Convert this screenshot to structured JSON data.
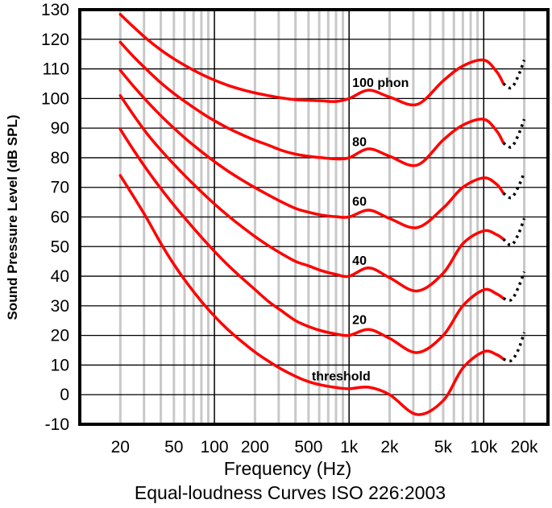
{
  "chart_data": {
    "type": "line",
    "title": "Equal-loudness Curves ISO 226:2003",
    "xlabel": "Frequency (Hz)",
    "ylabel": "Sound Pressure Level (dB SPL)",
    "x_scale": "log",
    "xlim": [
      10,
      30000
    ],
    "ylim": [
      -10,
      130
    ],
    "grid": true,
    "y_ticks": [
      130,
      120,
      110,
      100,
      90,
      80,
      70,
      60,
      50,
      40,
      30,
      20,
      10,
      0,
      -10
    ],
    "x_ticks": [
      {
        "value": 20,
        "label": "20"
      },
      {
        "value": 50,
        "label": "50"
      },
      {
        "value": 100,
        "label": "100"
      },
      {
        "value": 200,
        "label": "200"
      },
      {
        "value": 500,
        "label": "500"
      },
      {
        "value": 1000,
        "label": "1k"
      },
      {
        "value": 2000,
        "label": "2k"
      },
      {
        "value": 5000,
        "label": "5k"
      },
      {
        "value": 10000,
        "label": "10k"
      },
      {
        "value": 20000,
        "label": "20k"
      }
    ],
    "colors": {
      "curve": "#ff0000",
      "extrapolated": "#000000",
      "grid_minor": "#c8c8c8",
      "grid_major": "#000000"
    },
    "x": [
      20,
      25,
      31.5,
      40,
      50,
      63,
      80,
      100,
      125,
      160,
      200,
      250,
      315,
      400,
      500,
      630,
      800,
      1000,
      1400,
      2000,
      3200,
      5000,
      7000,
      10000,
      12500,
      14000
    ],
    "x_extrapolated": [
      14000,
      16000,
      18000,
      20000
    ],
    "series": [
      {
        "label": "100 phon",
        "label_at": [
          1000,
          105.5
        ],
        "values": [
          128.4,
          124.2,
          120.1,
          116.4,
          113.4,
          110.7,
          108.2,
          106.2,
          104.5,
          103,
          101.9,
          101,
          100.2,
          99.6,
          99.4,
          99.2,
          99,
          100,
          102.8,
          100.5,
          98,
          106,
          111,
          113,
          109,
          105
        ],
        "extrapolated": [
          105,
          103.6,
          107.5,
          113
        ]
      },
      {
        "label": "80",
        "label_at": [
          1000,
          85.5
        ],
        "values": [
          119,
          114.2,
          109.7,
          105.3,
          101.7,
          98.4,
          95.2,
          92.5,
          90.1,
          87.8,
          85.9,
          84.3,
          82.5,
          81.2,
          80.5,
          80,
          79.6,
          80,
          83,
          80.5,
          77.5,
          86,
          91,
          93,
          89,
          85
        ],
        "extrapolated": [
          85,
          83.6,
          87.5,
          93
        ]
      },
      {
        "label": "60",
        "label_at": [
          1000,
          65.5
        ],
        "values": [
          109.5,
          104.2,
          99.1,
          94.2,
          90,
          85.9,
          82.1,
          78.7,
          75.6,
          72.5,
          69.9,
          67.5,
          65.1,
          62.9,
          61.6,
          60.6,
          60.1,
          60,
          62.3,
          59.5,
          56.4,
          63,
          70,
          73.2,
          71,
          68
        ],
        "extrapolated": [
          68,
          66.5,
          70,
          75
        ]
      },
      {
        "label": "40",
        "label_at": [
          1000,
          45.5
        ],
        "values": [
          101,
          94.5,
          88.2,
          82.6,
          77.8,
          73.1,
          68.5,
          64.4,
          60.6,
          56.7,
          53.4,
          50.4,
          47.6,
          45,
          43.5,
          41.8,
          40.6,
          40,
          42.8,
          39.5,
          35,
          41,
          51,
          55.3,
          54,
          52.5
        ],
        "extrapolated": [
          52.5,
          50.5,
          54,
          59.5
        ]
      },
      {
        "label": "20",
        "label_at": [
          1000,
          25.5
        ],
        "values": [
          89.6,
          82.7,
          76,
          69.6,
          64,
          58.6,
          53.2,
          48.4,
          43.9,
          39.4,
          35.5,
          31.6,
          28.3,
          25,
          23,
          21.5,
          20.5,
          20,
          22,
          19,
          14.2,
          20,
          30,
          35.4,
          34,
          32.5
        ],
        "extrapolated": [
          32.5,
          32,
          36,
          41.5
        ]
      },
      {
        "label": "threshold",
        "label_at": [
          500,
          6.5
        ],
        "values": [
          74,
          67,
          59.5,
          51.1,
          44,
          37.5,
          31.5,
          26.5,
          22.1,
          17.9,
          14.4,
          11.4,
          8.6,
          6.2,
          4.4,
          3.2,
          2.4,
          2,
          2.5,
          0,
          -6.7,
          -2,
          9,
          14.5,
          13.5,
          12
        ],
        "extrapolated": [
          12,
          11.5,
          15,
          21
        ]
      }
    ]
  }
}
